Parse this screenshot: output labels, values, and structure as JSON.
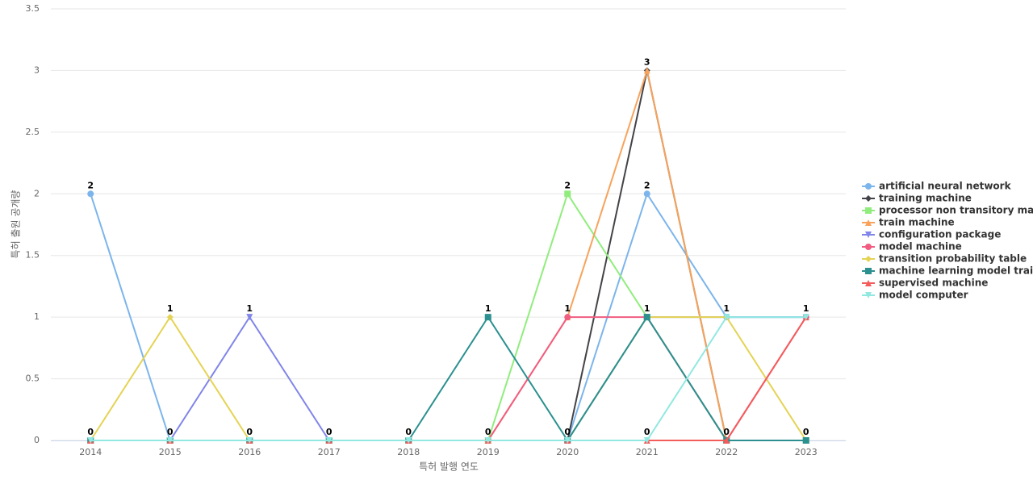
{
  "chart_data": {
    "type": "line",
    "x_label": "특허 발행 연도",
    "y_label": "특허 출원 공개량",
    "categories": [
      "2014",
      "2015",
      "2016",
      "2017",
      "2018",
      "2019",
      "2020",
      "2021",
      "2022",
      "2023"
    ],
    "ylim": [
      0,
      3.5
    ],
    "yticks": [
      0,
      0.5,
      1,
      1.5,
      2,
      2.5,
      3,
      3.5
    ],
    "grid": true,
    "series": [
      {
        "name": "artificial neural network",
        "color": "#7cb5ec",
        "values": [
          2,
          0,
          0,
          0,
          0,
          0,
          0,
          2,
          1,
          1
        ]
      },
      {
        "name": "training machine",
        "color": "#434348",
        "values": [
          0,
          0,
          0,
          0,
          0,
          0,
          0,
          3,
          0,
          0
        ]
      },
      {
        "name": "processor non transitory ma...",
        "color": "#90ed7d",
        "values": [
          0,
          0,
          0,
          0,
          0,
          0,
          2,
          1,
          0,
          0
        ]
      },
      {
        "name": "train machine",
        "color": "#f7a35c",
        "values": [
          0,
          0,
          0,
          0,
          0,
          0,
          1,
          3,
          0,
          0
        ]
      },
      {
        "name": "configuration package",
        "color": "#8085e9",
        "values": [
          0,
          0,
          1,
          0,
          0,
          0,
          0,
          1,
          1,
          1
        ]
      },
      {
        "name": "model machine",
        "color": "#f15c80",
        "values": [
          0,
          0,
          0,
          0,
          0,
          0,
          1,
          1,
          0,
          1
        ]
      },
      {
        "name": "transition probability table",
        "color": "#e4d354",
        "values": [
          0,
          1,
          0,
          0,
          0,
          0,
          0,
          1,
          1,
          0
        ]
      },
      {
        "name": "machine learning model trai...",
        "color": "#2b908f",
        "values": [
          0,
          0,
          0,
          0,
          0,
          1,
          0,
          1,
          0,
          0
        ]
      },
      {
        "name": "supervised machine",
        "color": "#f45b5b",
        "values": [
          0,
          0,
          0,
          0,
          0,
          0,
          0,
          0,
          0,
          1
        ]
      },
      {
        "name": "model computer",
        "color": "#91e8e1",
        "values": [
          0,
          0,
          0,
          0,
          0,
          0,
          0,
          0,
          1,
          1
        ]
      }
    ]
  }
}
